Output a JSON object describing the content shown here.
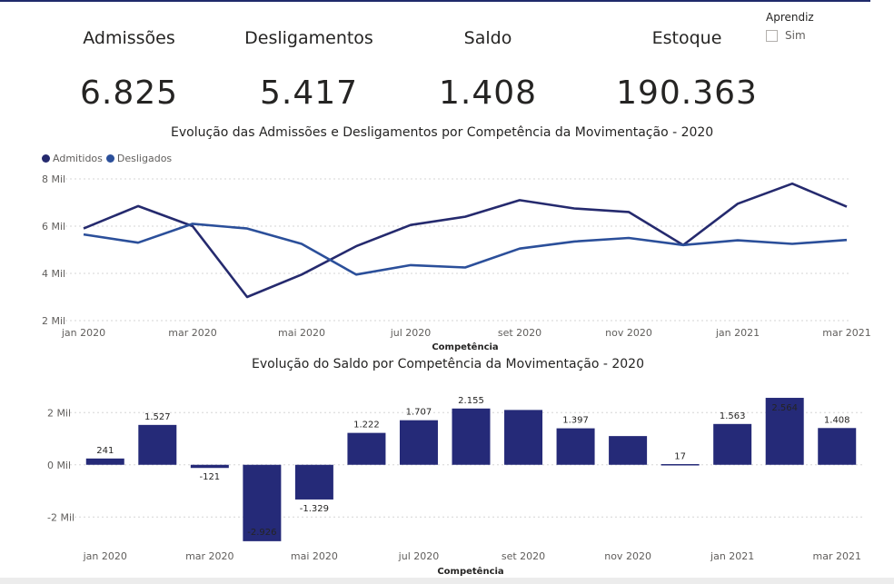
{
  "kpis": [
    {
      "label": "Admissões",
      "value": "6.825"
    },
    {
      "label": "Desligamentos",
      "value": "5.417"
    },
    {
      "label": "Saldo",
      "value": "1.408"
    },
    {
      "label": "Estoque",
      "value": "190.363"
    }
  ],
  "slicer": {
    "title": "Aprendiz",
    "option": "Sim"
  },
  "colors": {
    "admitidos": "#252a6e",
    "desligados": "#2b4f9a",
    "bars": "#252a78",
    "grid": "#d6d6d6"
  },
  "chart_data": [
    {
      "type": "line",
      "title": "Evolução das Admissões e Desligamentos por Competência da Movimentação - 2020",
      "xlabel": "Competência",
      "ylabel": "",
      "ylim": [
        2000,
        8000
      ],
      "yticks": [
        {
          "v": 8000,
          "label": "8 Mil"
        },
        {
          "v": 6000,
          "label": "6 Mil"
        },
        {
          "v": 4000,
          "label": "4 Mil"
        },
        {
          "v": 2000,
          "label": "2 Mil"
        }
      ],
      "categories": [
        "jan 2020",
        "fev 2020",
        "mar 2020",
        "abr 2020",
        "mai 2020",
        "jun 2020",
        "jul 2020",
        "ago 2020",
        "set 2020",
        "out 2020",
        "nov 2020",
        "dez 2020",
        "jan 2021",
        "fev 2021",
        "mar 2021"
      ],
      "xtick_labels": [
        "jan 2020",
        "",
        "mar 2020",
        "",
        "mai 2020",
        "",
        "jul 2020",
        "",
        "set 2020",
        "",
        "nov 2020",
        "",
        "jan 2021",
        "",
        "mar 2021"
      ],
      "series": [
        {
          "name": "Admitidos",
          "values": [
            5900,
            6850,
            6000,
            3000,
            3950,
            5150,
            6050,
            6400,
            7100,
            6750,
            6600,
            5200,
            6950,
            7800,
            6825
          ]
        },
        {
          "name": "Desligados",
          "values": [
            5650,
            5300,
            6100,
            5900,
            5250,
            3950,
            4350,
            4250,
            5050,
            5350,
            5500,
            5200,
            5400,
            5250,
            5417
          ]
        }
      ]
    },
    {
      "type": "bar",
      "title": "Evolução do Saldo por Competência da Movimentação - 2020",
      "xlabel": "Competência",
      "ylabel": "",
      "ylim": [
        -3000,
        2600
      ],
      "yticks": [
        {
          "v": 2000,
          "label": "2 Mil"
        },
        {
          "v": 0,
          "label": "0 Mil"
        },
        {
          "v": -2000,
          "label": "-2 Mil"
        }
      ],
      "categories": [
        "jan 2020",
        "fev 2020",
        "mar 2020",
        "abr 2020",
        "mai 2020",
        "jun 2020",
        "jul 2020",
        "ago 2020",
        "set 2020",
        "out 2020",
        "nov 2020",
        "dez 2020",
        "jan 2021",
        "fev 2021",
        "mar 2021"
      ],
      "xtick_labels": [
        "jan 2020",
        "",
        "mar 2020",
        "",
        "mai 2020",
        "",
        "jul 2020",
        "",
        "set 2020",
        "",
        "nov 2020",
        "",
        "jan 2021",
        "",
        "mar 2021"
      ],
      "values": [
        241,
        1527,
        -121,
        -2926,
        -1329,
        1222,
        1707,
        2155,
        2100,
        1397,
        1100,
        17,
        1563,
        2564,
        1408
      ],
      "data_labels": [
        "241",
        "1.527",
        "-121",
        "-2.926",
        "-1.329",
        "1.222",
        "1.707",
        "2.155",
        "",
        "1.397",
        "",
        "17",
        "1.563",
        "2.564",
        "1.408"
      ]
    }
  ]
}
